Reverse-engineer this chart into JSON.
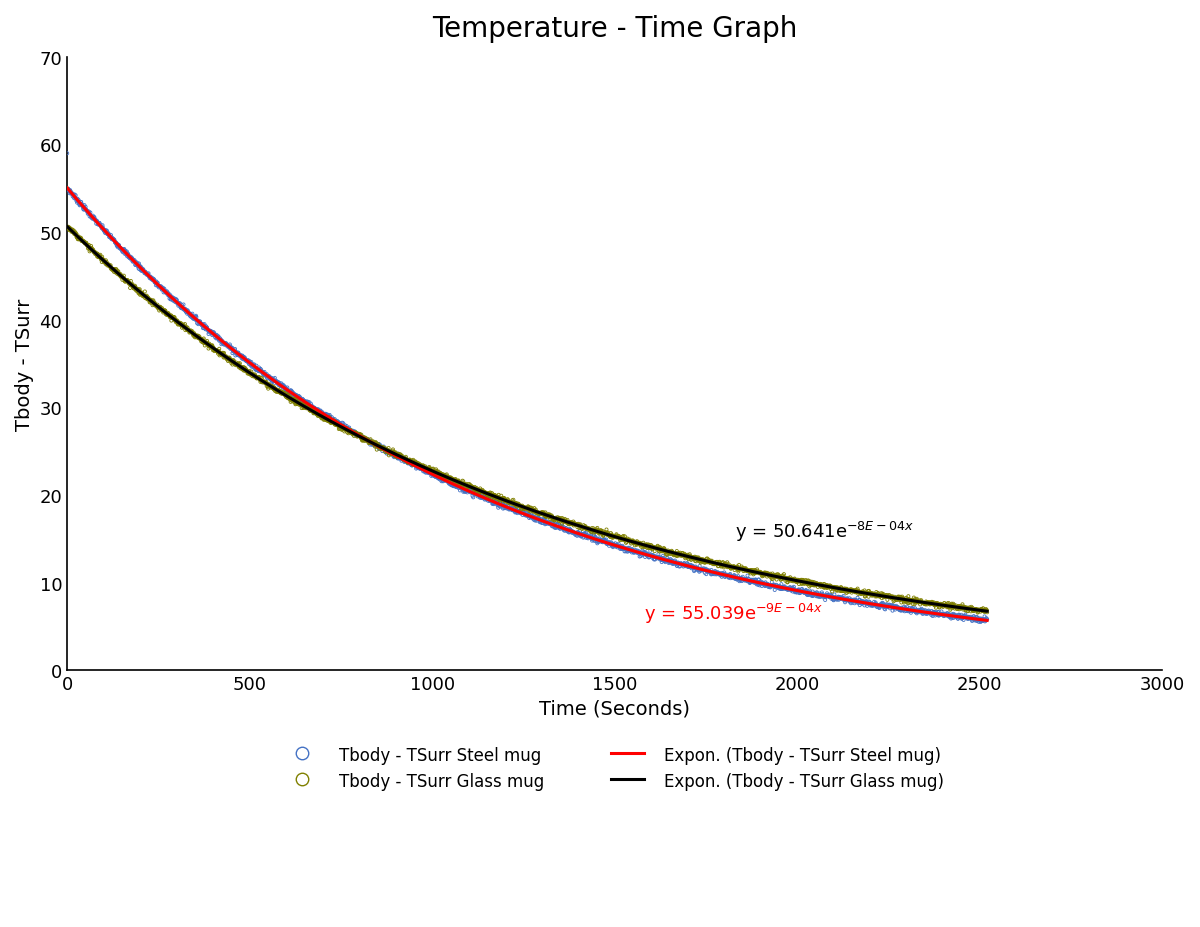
{
  "title": "Temperature - Time Graph",
  "xlabel": "Time (Seconds)",
  "ylabel": "Tbody - TSurr",
  "xlim": [
    0,
    3000
  ],
  "ylim": [
    0,
    70
  ],
  "xticks": [
    0,
    500,
    1000,
    1500,
    2000,
    2500,
    3000
  ],
  "yticks": [
    0,
    10,
    20,
    30,
    40,
    50,
    60,
    70
  ],
  "steel_A": 55.039,
  "steel_k": 0.0009,
  "steel_x0": 59.0,
  "glass_A": 50.641,
  "glass_k": 0.0008,
  "glass_x0": 55.0,
  "n_scatter": 2500,
  "scatter_noise": 0.15,
  "steel_color": "#4472C4",
  "glass_color": "#808000",
  "steel_line_color": "#FF0000",
  "glass_line_color": "#000000",
  "eq_steel_x": 1580,
  "eq_steel_y": 5.2,
  "eq_glass_x": 1830,
  "eq_glass_y": 14.5,
  "title_fontsize": 20,
  "label_fontsize": 14,
  "tick_fontsize": 13,
  "legend_fontsize": 12
}
